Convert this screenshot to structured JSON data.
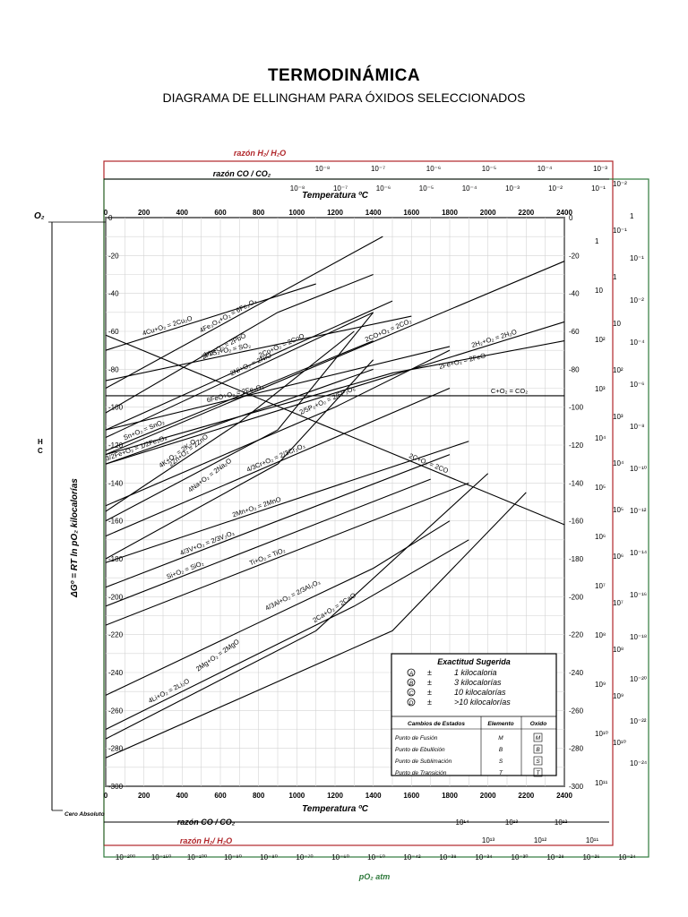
{
  "title": "TERMODINÁMICA",
  "subtitle": "DIAGRAMA DE ELLINGHAM PARA ÓXIDOS SELECCIONADOS",
  "chart_data": {
    "type": "line",
    "xlabel": "Temperatura ºC",
    "ylabel": "ΔGº = RT ln pO₂ kilocalorías",
    "xlim": [
      0,
      2400
    ],
    "ylim": [
      -300,
      0
    ],
    "x_ticks": [
      "0",
      "200",
      "400",
      "600",
      "800",
      "1000",
      "1200",
      "1400",
      "1600",
      "1800",
      "2000",
      "2200",
      "2400"
    ],
    "y_ticks": [
      "0",
      "-20",
      "-40",
      "-60",
      "-80",
      "-100",
      "-120",
      "-140",
      "-160",
      "-180",
      "-200",
      "-220",
      "-240",
      "-260",
      "-280",
      "-300"
    ],
    "grid": true,
    "series": [
      {
        "name": "4Cu+O₂ = 2Cu₂O",
        "points": [
          [
            0,
            -70
          ],
          [
            1100,
            -35
          ]
        ]
      },
      {
        "name": "4Fe₃O₄+O₂ = 6Fe₂O₃",
        "points": [
          [
            0,
            -90
          ],
          [
            1450,
            -10
          ]
        ]
      },
      {
        "name": "2Pb+O₂ = 2PbO",
        "points": [
          [
            0,
            -103
          ],
          [
            900,
            -50
          ],
          [
            1400,
            -30
          ]
        ]
      },
      {
        "name": "2Ni+O₂ = 2NiO",
        "points": [
          [
            0,
            -116
          ],
          [
            1400,
            -50
          ]
        ]
      },
      {
        "name": "2Co+O₂ = 2CoO",
        "points": [
          [
            0,
            -112
          ],
          [
            1500,
            -44
          ]
        ]
      },
      {
        "name": "2CO+O₂ = 2CO₂",
        "points": [
          [
            0,
            -125
          ],
          [
            2400,
            -23
          ]
        ]
      },
      {
        "name": "2H₂+O₂ = 2H₂O",
        "points": [
          [
            0,
            -130
          ],
          [
            2400,
            -55
          ]
        ]
      },
      {
        "name": "1/2S₂+O₂ = SO₂",
        "points": [
          [
            0,
            -86
          ],
          [
            1600,
            -52
          ]
        ]
      },
      {
        "name": "2/5P₂+O₂ = 2/5P₂O₅",
        "points": [
          [
            0,
            -152
          ],
          [
            1200,
            -100
          ],
          [
            1800,
            -70
          ]
        ]
      },
      {
        "name": "2Fe+O₂ = 2FeO",
        "points": [
          [
            0,
            -125
          ],
          [
            1500,
            -82
          ],
          [
            2400,
            -65
          ]
        ]
      },
      {
        "name": "6FeO+O₂ = 2Fe₃O₄",
        "points": [
          [
            0,
            -112
          ],
          [
            1800,
            -68
          ]
        ]
      },
      {
        "name": "C+O₂ = CO₂",
        "points": [
          [
            0,
            -94
          ],
          [
            2400,
            -94
          ]
        ]
      },
      {
        "name": "2C+O₂ = 2CO",
        "points": [
          [
            0,
            -62
          ],
          [
            2400,
            -162
          ]
        ]
      },
      {
        "name": "Sn+O₂ = SnO₂",
        "points": [
          [
            0,
            -123
          ],
          [
            1400,
            -65
          ]
        ]
      },
      {
        "name": "3/2Fe+O₂ = 1/2Fe₃O₄",
        "points": [
          [
            0,
            -130
          ],
          [
            1400,
            -80
          ]
        ]
      },
      {
        "name": "4K+O₂ = 2K₂O",
        "points": [
          [
            0,
            -155
          ],
          [
            700,
            -108
          ],
          [
            1300,
            -60
          ]
        ]
      },
      {
        "name": "2Zn+O₂ = 2ZnO",
        "points": [
          [
            0,
            -160
          ],
          [
            900,
            -112
          ],
          [
            1400,
            -50
          ]
        ]
      },
      {
        "name": "4Na+O₂ = 2Na₂O",
        "points": [
          [
            0,
            -180
          ],
          [
            900,
            -130
          ],
          [
            1400,
            -75
          ]
        ]
      },
      {
        "name": "4/3Cr+O₂ = 2/3Cr₂O₃",
        "points": [
          [
            0,
            -168
          ],
          [
            1800,
            -90
          ]
        ]
      },
      {
        "name": "2Mn+O₂ = 2MnO",
        "points": [
          [
            0,
            -182
          ],
          [
            1900,
            -118
          ]
        ]
      },
      {
        "name": "4/3V+O₂ = 2/3V₂O₃",
        "points": [
          [
            0,
            -195
          ],
          [
            1800,
            -125
          ]
        ]
      },
      {
        "name": "Si+O₂ = SiO₂",
        "points": [
          [
            0,
            -205
          ],
          [
            1700,
            -138
          ]
        ]
      },
      {
        "name": "Ti+O₂ = TiO₂",
        "points": [
          [
            0,
            -215
          ],
          [
            1900,
            -140
          ]
        ]
      },
      {
        "name": "4/3Al+O₂ = 2/3Al₂O₃",
        "points": [
          [
            0,
            -252
          ],
          [
            1400,
            -185
          ],
          [
            1800,
            -160
          ]
        ]
      },
      {
        "name": "4Li+O₂ = 2Li₂O",
        "points": [
          [
            0,
            -270
          ],
          [
            1300,
            -205
          ],
          [
            1900,
            -170
          ]
        ]
      },
      {
        "name": "2Mg+O₂ = 2MgO",
        "points": [
          [
            0,
            -275
          ],
          [
            1100,
            -218
          ],
          [
            2000,
            -135
          ]
        ]
      },
      {
        "name": "2Ca+O₂ = 2CaO",
        "points": [
          [
            0,
            -285
          ],
          [
            1500,
            -218
          ],
          [
            2200,
            -145
          ]
        ]
      }
    ],
    "top_scales": [
      {
        "name": "razón H₂/ H₂O",
        "ticks": [
          "10⁻⁸",
          "10⁻⁷",
          "10⁻⁶",
          "10⁻⁵",
          "10⁻⁴",
          "10⁻³"
        ]
      },
      {
        "name": "razón CO / CO₂",
        "ticks": [
          "10⁻⁸",
          "10⁻⁷",
          "10⁻⁶",
          "10⁻⁵",
          "10⁻⁴",
          "10⁻³",
          "10⁻²",
          "10⁻¹"
        ]
      }
    ],
    "bottom_scales": [
      {
        "name": "razón CO / CO₂",
        "ticks": [
          "10¹⁴",
          "10¹³",
          "10¹²"
        ]
      },
      {
        "name": "razón H₂/ H₂O",
        "ticks": [
          "10¹³",
          "10¹²",
          "10¹¹"
        ]
      },
      {
        "name": "pO₂ atm",
        "ticks": [
          "10⁻²⁰⁰",
          "10⁻¹⁵⁰",
          "10⁻¹⁰⁰",
          "10⁻⁹⁰",
          "10⁻⁸⁰",
          "10⁻⁷⁰",
          "10⁻⁶⁰",
          "10⁻⁵⁰",
          "10⁻⁴²",
          "10⁻³⁸",
          "10⁻³⁴",
          "10⁻³⁰",
          "10⁻²⁸",
          "10⁻²⁶",
          "10⁻²⁴"
        ]
      }
    ],
    "right_scales": [
      {
        "name": "razón CO/CO₂",
        "ticks": [
          "1",
          "10",
          "10²",
          "10³",
          "10⁴",
          "10⁵",
          "10⁶",
          "10⁷",
          "10⁸",
          "10⁹",
          "10¹⁰",
          "10¹¹"
        ]
      },
      {
        "name": "razón H₂/H₂O",
        "ticks": [
          "10⁻²",
          "10⁻¹",
          "1",
          "10",
          "10²",
          "10³",
          "10⁴",
          "10⁵",
          "10⁶",
          "10⁷",
          "10⁸",
          "10⁹",
          "10¹⁰"
        ]
      },
      {
        "name": "pO₂",
        "ticks": [
          "1",
          "10⁻¹",
          "10⁻²",
          "10⁻⁴",
          "10⁻⁶",
          "10⁻⁸",
          "10⁻¹⁰",
          "10⁻¹²",
          "10⁻¹⁴",
          "10⁻¹⁶",
          "10⁻¹⁸",
          "10⁻²⁰",
          "10⁻²²",
          "10⁻²⁴"
        ]
      }
    ],
    "left_axis": {
      "label": "O₂",
      "markers": [
        "H",
        "C"
      ],
      "bottom_note": "Cero Absoluto"
    },
    "legend": {
      "title": "Exactitud Sugerida",
      "rows": [
        {
          "sym": "A",
          "pm": "±",
          "text": "1 kilocaloria"
        },
        {
          "sym": "B",
          "pm": "±",
          "text": "3 kilocalorías"
        },
        {
          "sym": "C",
          "pm": "±",
          "text": "10 kilocalorías"
        },
        {
          "sym": "D",
          "pm": "±",
          "text": ">10 kilocalorías"
        }
      ],
      "table_headers": [
        "Cambios de Estados",
        "Elemento",
        "Oxido"
      ],
      "table_rows": [
        {
          "label": "Punto de Fusión",
          "el": "M",
          "ox": "M"
        },
        {
          "label": "Punto de Ebullición",
          "el": "B",
          "ox": "B"
        },
        {
          "label": "Punto de Sublimación",
          "el": "S",
          "ox": "S"
        },
        {
          "label": "Punto de Transición",
          "el": "T",
          "ox": "T"
        }
      ]
    }
  }
}
